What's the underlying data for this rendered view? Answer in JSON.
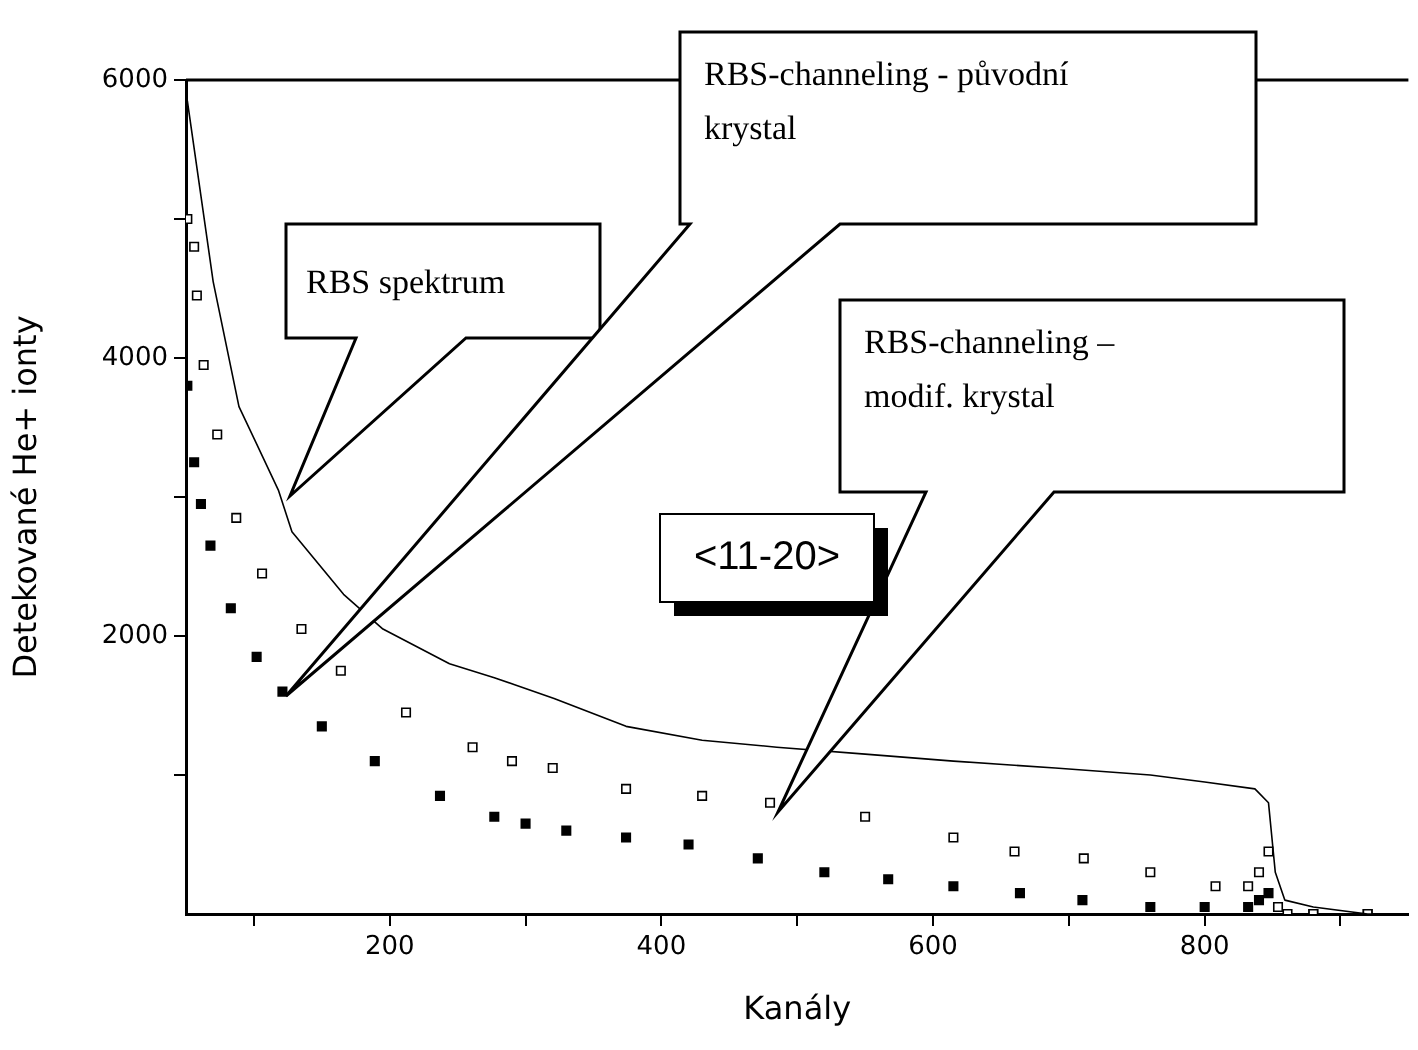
{
  "chart_data": {
    "type": "line",
    "xlabel": "Kanály",
    "ylabel": "Detekované He+ ionty",
    "xlim": [
      50,
      950
    ],
    "ylim": [
      0,
      6000
    ],
    "xticks": [
      {
        "value": 100,
        "label": null
      },
      200,
      {
        "value": 300,
        "label": null
      },
      400,
      {
        "value": 500,
        "label": null
      },
      600,
      {
        "value": 700,
        "label": null
      },
      800,
      {
        "value": 900,
        "label": null
      }
    ],
    "yticks": [
      {
        "value": 1000,
        "label": null
      },
      2000,
      {
        "value": 3000,
        "label": null
      },
      4000,
      {
        "value": 5000,
        "label": null
      },
      6000
    ],
    "grid": false,
    "legend": false,
    "series": [
      {
        "color": "#000000",
        "marker": "none",
        "line_style": "solid",
        "x": [
          51,
          70,
          89,
          118,
          128,
          166,
          195,
          244,
          277,
          292,
          321,
          374,
          430,
          485,
          550,
          615,
          690,
          760,
          800,
          837,
          847,
          852,
          859,
          880,
          920,
          950
        ],
        "values": [
          5850,
          4550,
          3650,
          3050,
          2750,
          2300,
          2050,
          1800,
          1700,
          1650,
          1550,
          1350,
          1250,
          1200,
          1150,
          1100,
          1050,
          1000,
          950,
          900,
          800,
          300,
          100,
          50,
          0,
          0
        ]
      },
      {
        "type": "scatter",
        "color": "#000000",
        "marker": "square",
        "x": [
          51,
          56,
          58,
          63,
          73,
          87,
          106,
          135,
          164,
          212,
          261,
          290,
          320,
          374,
          430,
          480,
          550,
          615,
          660,
          711,
          760,
          808,
          832,
          840,
          847,
          854,
          861,
          880,
          920
        ],
        "values": [
          5000,
          4800,
          4450,
          3950,
          3450,
          2850,
          2450,
          2050,
          1750,
          1450,
          1200,
          1100,
          1050,
          900,
          850,
          800,
          700,
          550,
          450,
          400,
          300,
          200,
          200,
          300,
          450,
          50,
          0,
          0,
          0
        ]
      },
      {
        "type": "scatter",
        "color": "#000000",
        "marker": "square",
        "x": [
          51,
          56,
          61,
          68,
          83,
          102,
          121,
          150,
          189,
          237,
          277,
          300,
          330,
          374,
          420,
          471,
          520,
          567,
          615,
          664,
          710,
          760,
          800,
          832,
          840,
          847,
          880,
          920
        ],
        "values": [
          3800,
          3250,
          2950,
          2650,
          2200,
          1850,
          1600,
          1350,
          1100,
          850,
          700,
          650,
          600,
          550,
          500,
          400,
          300,
          250,
          200,
          150,
          100,
          50,
          50,
          50,
          100,
          150,
          0,
          0
        ]
      }
    ],
    "annotations": [
      "RBS spektrum",
      "RBS-channeling - původní krystal",
      "RBS-channeling – modif. krystal",
      "<11-20>"
    ]
  }
}
